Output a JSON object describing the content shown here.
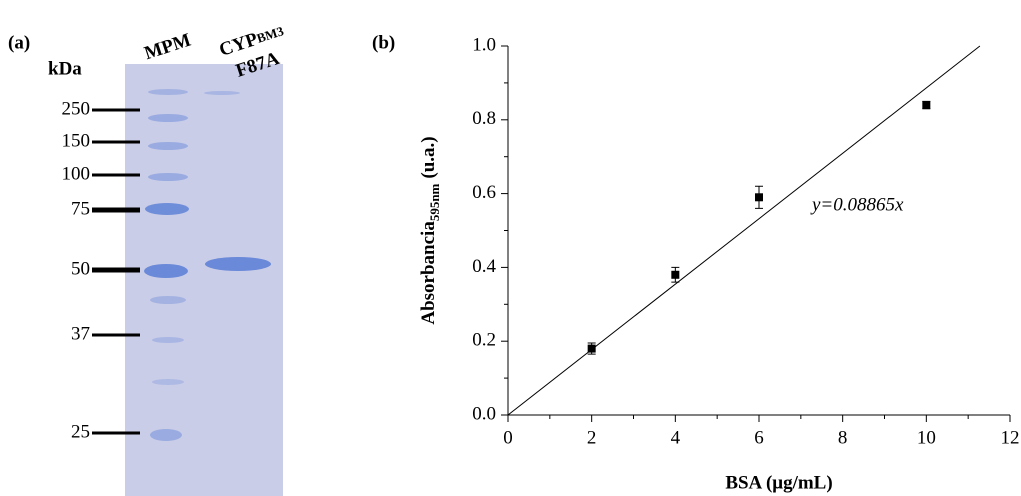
{
  "gel": {
    "label": "(a)",
    "unit": "kDa",
    "lanes": [
      "MPM",
      "CYP",
      "F87A"
    ],
    "lane_subscript": "BM3",
    "markers": [
      "250",
      "150",
      "100",
      "75",
      "50",
      "37",
      "25"
    ]
  },
  "chart_data": {
    "type": "scatter",
    "label": "(b)",
    "x_label": "BSA (μg/mL)",
    "y_label": {
      "text": "Absorbancia",
      "subscript": "595nm",
      "suffix": "(u.a.)"
    },
    "x": [
      2,
      4,
      6,
      10
    ],
    "values": [
      0.18,
      0.38,
      0.59,
      0.84
    ],
    "errors": [
      0.015,
      0.02,
      0.03,
      0.01
    ],
    "color": "#000000",
    "fit": {
      "label": "y=0.08865x",
      "slope": 0.08865
    },
    "xlim": [
      0,
      12
    ],
    "xticks": [
      0,
      2,
      4,
      6,
      8,
      10,
      12
    ],
    "ylim": [
      0,
      1.0
    ],
    "yticks": [
      {
        "value": 0,
        "label": "0.0"
      },
      0.2,
      0.4,
      0.6,
      0.8,
      {
        "value": 1.0,
        "label": "1.0"
      }
    ]
  }
}
